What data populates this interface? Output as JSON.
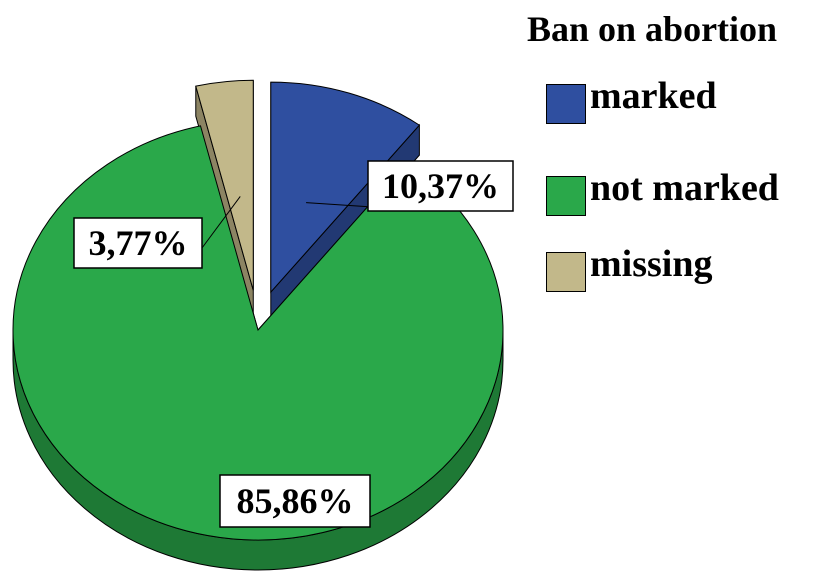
{
  "chart_data": {
    "type": "pie",
    "title": "Ban on abortion",
    "categories": [
      "marked",
      "not marked",
      "missing"
    ],
    "values": [
      10.37,
      85.86,
      3.77
    ],
    "data_labels": [
      "10,37%",
      "85,86%",
      "3,77%"
    ],
    "colors": [
      "#2f4fa0",
      "#2aa84a",
      "#c2b88a"
    ],
    "exploded": true,
    "three_d": true,
    "legend_position": "top-right"
  }
}
